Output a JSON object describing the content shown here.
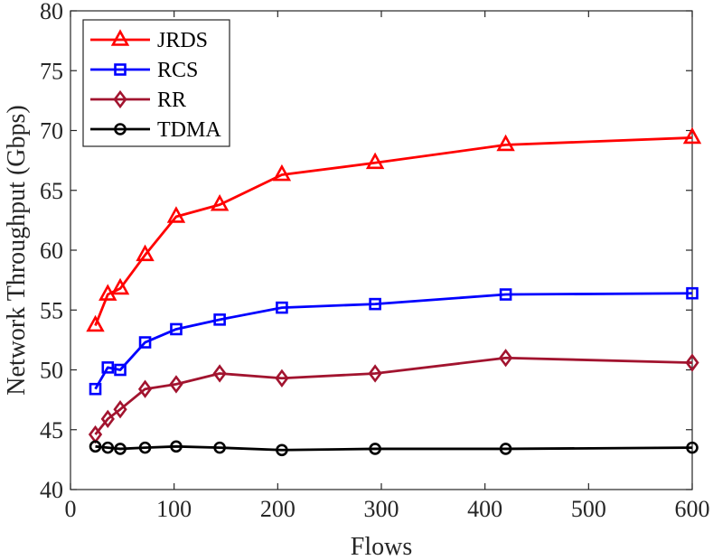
{
  "chart_data": {
    "type": "line",
    "title": "",
    "xlabel": "Flows",
    "ylabel": "Network Throughput (Gbps)",
    "xlim": [
      0,
      600
    ],
    "ylim": [
      40,
      80
    ],
    "xticks": [
      0,
      100,
      200,
      300,
      400,
      500,
      600
    ],
    "yticks": [
      40,
      45,
      50,
      55,
      60,
      65,
      70,
      75,
      80
    ],
    "x": [
      24,
      36,
      48,
      72,
      102,
      144,
      204,
      294,
      420,
      600
    ],
    "series": [
      {
        "name": "JRDS",
        "color": "#ff0000",
        "marker": "triangle",
        "values": [
          53.7,
          56.3,
          56.8,
          59.6,
          62.8,
          63.8,
          66.3,
          67.3,
          68.8,
          69.4
        ]
      },
      {
        "name": "RCS",
        "color": "#0000ff",
        "marker": "square",
        "values": [
          48.4,
          50.2,
          50.0,
          52.3,
          53.4,
          54.2,
          55.2,
          55.5,
          56.3,
          56.4
        ]
      },
      {
        "name": "RR",
        "color": "#a2142f",
        "marker": "diamond",
        "values": [
          44.6,
          45.9,
          46.7,
          48.4,
          48.8,
          49.7,
          49.3,
          49.7,
          51.0,
          50.6
        ]
      },
      {
        "name": "TDMA",
        "color": "#000000",
        "marker": "circle",
        "values": [
          43.6,
          43.5,
          43.4,
          43.5,
          43.6,
          43.5,
          43.3,
          43.4,
          43.4,
          43.5
        ]
      }
    ],
    "grid": false,
    "legend_position": "top-left"
  }
}
